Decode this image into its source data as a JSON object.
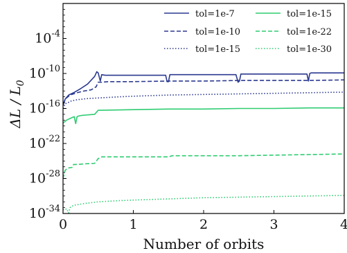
{
  "chart_data": {
    "type": "line",
    "xlabel": "Number of orbits",
    "ylabel": "ΔL / L0",
    "ylabel_main": "ΔL / L",
    "ylabel_sub": "0",
    "xlim": [
      0,
      4
    ],
    "ylim_log10": [
      -34,
      2
    ],
    "y_scale": "log",
    "grid": false,
    "legend_placement": "top-right",
    "x_ticks": [
      {
        "value": 0,
        "label": "0"
      },
      {
        "value": 1,
        "label": "1"
      },
      {
        "value": 2,
        "label": "2"
      },
      {
        "value": 3,
        "label": "3"
      },
      {
        "value": 4,
        "label": "4"
      }
    ],
    "y_ticks": [
      {
        "exp": -4,
        "base": "10",
        "sup": "-4"
      },
      {
        "exp": -10,
        "base": "10",
        "sup": "-10"
      },
      {
        "exp": -16,
        "base": "10",
        "sup": "-16"
      },
      {
        "exp": -22,
        "base": "10",
        "sup": "-22"
      },
      {
        "exp": -28,
        "base": "10",
        "sup": "-28"
      },
      {
        "exp": -34,
        "base": "10",
        "sup": "-34"
      }
    ],
    "series": [
      {
        "name": "tol=1e-7",
        "color": "#2b3990",
        "dash": "solid",
        "x": [
          0.0,
          0.03,
          0.08,
          0.15,
          0.25,
          0.35,
          0.45,
          0.48,
          0.5,
          0.53,
          0.55,
          0.6,
          1.0,
          1.46,
          1.48,
          1.5,
          1.52,
          1.55,
          2.0,
          2.46,
          2.49,
          2.51,
          2.53,
          3.0,
          3.47,
          3.49,
          3.51,
          3.53,
          4.0
        ],
        "log10_y": [
          -15.5,
          -14.4,
          -13.7,
          -13.3,
          -12.6,
          -11.8,
          -10.5,
          -9.7,
          -9.9,
          -11.3,
          -10.2,
          -10.3,
          -10.3,
          -10.3,
          -11.4,
          -11.4,
          -10.2,
          -10.2,
          -10.2,
          -10.2,
          -11.5,
          -11.3,
          -10.1,
          -10.1,
          -10.1,
          -11.3,
          -10.0,
          -9.9,
          -9.9
        ]
      },
      {
        "name": "tol=1e-10",
        "color": "#2b3990",
        "dash": "dashed",
        "x": [
          0.0,
          0.04,
          0.1,
          0.2,
          0.3,
          0.4,
          0.47,
          0.5,
          0.55,
          0.65,
          0.8,
          1.0,
          1.5,
          2.0,
          2.5,
          3.0,
          3.5,
          4.0
        ],
        "log10_y": [
          -15.2,
          -14.3,
          -13.7,
          -13.3,
          -13.0,
          -12.8,
          -12.3,
          -11.5,
          -11.5,
          -11.4,
          -11.4,
          -11.4,
          -11.3,
          -11.3,
          -11.2,
          -11.2,
          -11.2,
          -11.1
        ]
      },
      {
        "name": "tol=1e-15",
        "color": "#2b3990",
        "dash": "dotted",
        "x": [
          0.0,
          0.03,
          0.07,
          0.12,
          0.2,
          0.35,
          0.5,
          0.8,
          1.0,
          1.5,
          2.0,
          2.5,
          3.0,
          3.5,
          4.0
        ],
        "log10_y": [
          -16.0,
          -15.2,
          -15.0,
          -14.7,
          -14.5,
          -14.3,
          -14.2,
          -14.0,
          -13.9,
          -13.7,
          -13.6,
          -13.5,
          -13.4,
          -13.3,
          -13.2
        ]
      },
      {
        "name": "tol=1e-15",
        "color": "#2ecc71",
        "dash": "solid",
        "x": [
          0.0,
          0.05,
          0.12,
          0.16,
          0.18,
          0.2,
          0.22,
          0.26,
          0.35,
          0.45,
          0.5,
          0.55,
          1.0,
          1.5,
          2.0,
          2.5,
          3.0,
          3.5,
          4.0
        ],
        "log10_y": [
          -18.5,
          -18.0,
          -17.6,
          -17.4,
          -18.6,
          -17.4,
          -17.3,
          -17.2,
          -17.1,
          -17.0,
          -16.3,
          -16.3,
          -16.2,
          -16.1,
          -16.1,
          -16.0,
          -16.0,
          -15.9,
          -15.9
        ]
      },
      {
        "name": "tol=1e-22",
        "color": "#2ecc71",
        "dash": "dashed",
        "x": [
          0.0,
          0.03,
          0.07,
          0.13,
          0.15,
          0.2,
          0.3,
          0.45,
          0.5,
          0.55,
          1.0,
          1.5,
          1.55,
          2.0,
          2.5,
          3.0,
          3.5,
          4.0
        ],
        "log10_y": [
          -28.0,
          -26.6,
          -26.2,
          -26.1,
          -25.6,
          -25.6,
          -25.5,
          -25.4,
          -24.6,
          -24.3,
          -24.3,
          -24.3,
          -24.1,
          -24.1,
          -24.1,
          -24.0,
          -23.9,
          -23.8
        ]
      },
      {
        "name": "tol=1e-30",
        "color": "#2ecc71",
        "dash": "dotted",
        "x": [
          0.0,
          0.02,
          0.05,
          0.08,
          0.1,
          0.15,
          0.3,
          0.5,
          0.8,
          1.0,
          1.5,
          2.0,
          2.5,
          3.0,
          3.5,
          4.0
        ],
        "log10_y": [
          -33.3,
          -33.4,
          -33.2,
          -33.9,
          -33.0,
          -32.6,
          -32.3,
          -32.0,
          -31.8,
          -31.7,
          -31.5,
          -31.3,
          -31.2,
          -31.1,
          -31.0,
          -30.9
        ]
      }
    ]
  }
}
